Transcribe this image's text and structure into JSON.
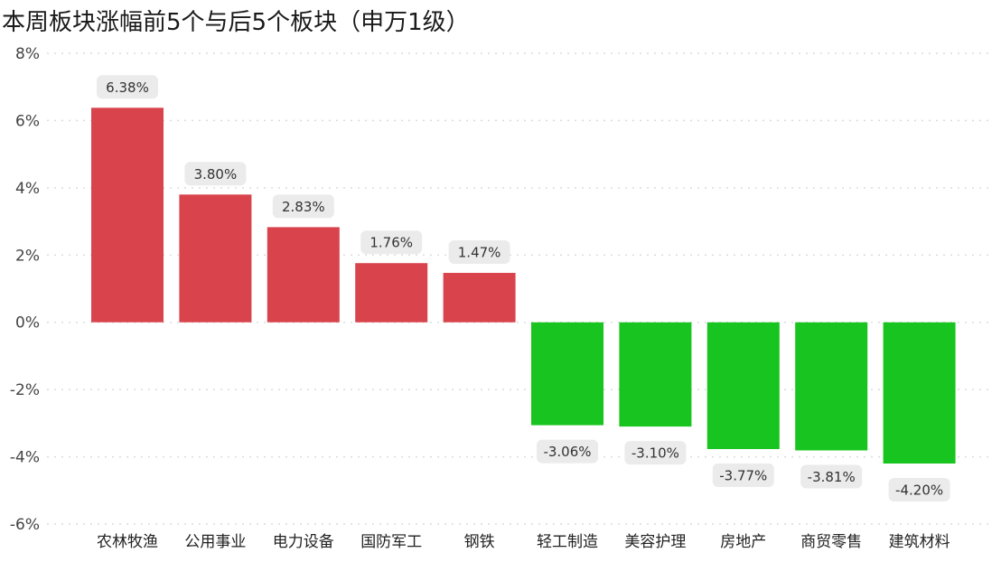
{
  "chart_data": {
    "type": "bar",
    "title": "本周板块涨幅前5个与后5个板块（申万1级）",
    "categories": [
      "农林牧渔",
      "公用事业",
      "电力设备",
      "国防军工",
      "钢铁",
      "轻工制造",
      "美容护理",
      "房地产",
      "商贸零售",
      "建筑材料"
    ],
    "values": [
      6.38,
      3.8,
      2.83,
      1.76,
      1.47,
      -3.06,
      -3.1,
      -3.77,
      -3.81,
      -4.2
    ],
    "data_labels": [
      "6.38%",
      "3.80%",
      "2.83%",
      "1.76%",
      "1.47%",
      "-3.06%",
      "-3.10%",
      "-3.77%",
      "-3.81%",
      "-4.20%"
    ],
    "ylim": [
      -6,
      8
    ],
    "yticks": [
      8,
      6,
      4,
      2,
      0,
      -2,
      -4,
      -6
    ],
    "ytick_labels": [
      "8%",
      "6%",
      "4%",
      "2%",
      "0%",
      "-2%",
      "-4%",
      "-6%"
    ],
    "xlabel": "",
    "ylabel": "",
    "grid": true,
    "colors": {
      "positive": "#d9444c",
      "negative": "#18c41f",
      "label_bg": "#ebebeb",
      "grid": "#dcdcdc"
    }
  }
}
